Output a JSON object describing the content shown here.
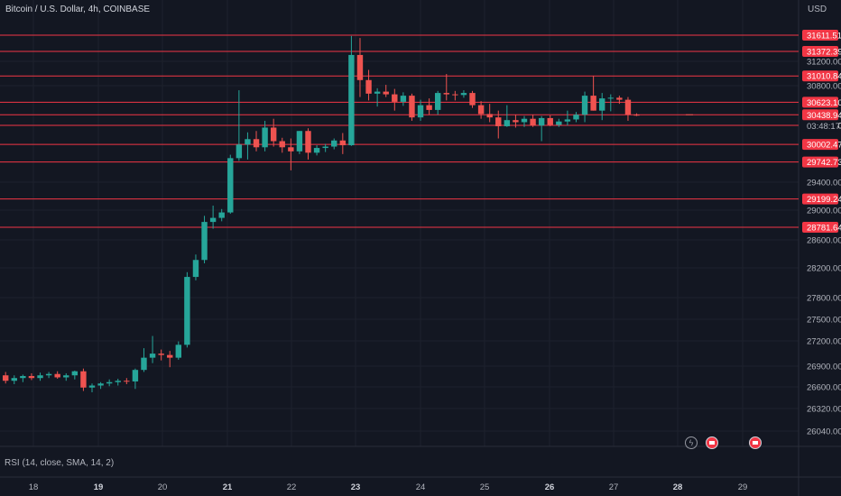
{
  "chart_data": {
    "type": "candlestick",
    "title": "Bitcoin / U.S. Dollar, 4h, COINBASE",
    "currency": "USD",
    "colors": {
      "up": "#26a69a",
      "down": "#ef5350",
      "level_line": "#f23645",
      "background": "#131722",
      "grid": "#1e222d",
      "text": "#b2b5be"
    },
    "x_axis": {
      "labels": [
        "18",
        "19",
        "20",
        "21",
        "22",
        "23",
        "24",
        "25",
        "26",
        "27",
        "28",
        "29"
      ],
      "bold": [
        "19",
        "21",
        "23",
        "26",
        "28"
      ]
    },
    "y_axis": {
      "labels": [
        "31200.00",
        "30800.00",
        "29400.00",
        "29000.00",
        "28600.00",
        "28200.00",
        "27800.00",
        "27500.00",
        "27200.00",
        "26900.00",
        "26600.00",
        "26320.00",
        "26040.00"
      ]
    },
    "price_levels": [
      "31611.51",
      "31372.39",
      "31010.84",
      "30623.10",
      "30438.94",
      "30282.40",
      "30002.47",
      "29742.73",
      "29199.24",
      "28781.64"
    ],
    "current_price": {
      "value": "30438.94",
      "countdown": "03:48:17"
    },
    "candles": [
      {
        "o": 26600,
        "h": 26650,
        "l": 26480,
        "c": 26520
      },
      {
        "o": 26520,
        "h": 26600,
        "l": 26470,
        "c": 26560
      },
      {
        "o": 26560,
        "h": 26610,
        "l": 26500,
        "c": 26590
      },
      {
        "o": 26590,
        "h": 26630,
        "l": 26530,
        "c": 26560
      },
      {
        "o": 26560,
        "h": 26640,
        "l": 26520,
        "c": 26600
      },
      {
        "o": 26600,
        "h": 26650,
        "l": 26560,
        "c": 26620
      },
      {
        "o": 26620,
        "h": 26660,
        "l": 26550,
        "c": 26570
      },
      {
        "o": 26570,
        "h": 26630,
        "l": 26520,
        "c": 26600
      },
      {
        "o": 26600,
        "h": 26670,
        "l": 26540,
        "c": 26660
      },
      {
        "o": 26660,
        "h": 26700,
        "l": 26370,
        "c": 26420
      },
      {
        "o": 26420,
        "h": 26480,
        "l": 26350,
        "c": 26450
      },
      {
        "o": 26450,
        "h": 26500,
        "l": 26400,
        "c": 26480
      },
      {
        "o": 26480,
        "h": 26540,
        "l": 26440,
        "c": 26500
      },
      {
        "o": 26500,
        "h": 26550,
        "l": 26450,
        "c": 26520
      },
      {
        "o": 26520,
        "h": 26560,
        "l": 26470,
        "c": 26510
      },
      {
        "o": 26510,
        "h": 26700,
        "l": 26400,
        "c": 26680
      },
      {
        "o": 26680,
        "h": 27000,
        "l": 26650,
        "c": 26860
      },
      {
        "o": 26860,
        "h": 27180,
        "l": 26780,
        "c": 26920
      },
      {
        "o": 26920,
        "h": 26980,
        "l": 26820,
        "c": 26900
      },
      {
        "o": 26900,
        "h": 26960,
        "l": 26720,
        "c": 26860
      },
      {
        "o": 26860,
        "h": 27100,
        "l": 26830,
        "c": 27050
      },
      {
        "o": 27050,
        "h": 28120,
        "l": 27010,
        "c": 28050
      },
      {
        "o": 28050,
        "h": 28380,
        "l": 28000,
        "c": 28300
      },
      {
        "o": 28300,
        "h": 28950,
        "l": 28250,
        "c": 28860
      },
      {
        "o": 28860,
        "h": 29100,
        "l": 28760,
        "c": 28920
      },
      {
        "o": 28920,
        "h": 29050,
        "l": 28870,
        "c": 29000
      },
      {
        "o": 29000,
        "h": 29850,
        "l": 28980,
        "c": 29800
      },
      {
        "o": 29800,
        "h": 30800,
        "l": 29760,
        "c": 30000
      },
      {
        "o": 30000,
        "h": 30180,
        "l": 29780,
        "c": 30080
      },
      {
        "o": 30080,
        "h": 30200,
        "l": 29900,
        "c": 29960
      },
      {
        "o": 29960,
        "h": 30350,
        "l": 29900,
        "c": 30250
      },
      {
        "o": 30250,
        "h": 30380,
        "l": 29970,
        "c": 30050
      },
      {
        "o": 30050,
        "h": 30100,
        "l": 29880,
        "c": 29960
      },
      {
        "o": 29960,
        "h": 30090,
        "l": 29620,
        "c": 29900
      },
      {
        "o": 29900,
        "h": 30200,
        "l": 29860,
        "c": 30200
      },
      {
        "o": 30200,
        "h": 30240,
        "l": 29780,
        "c": 29880
      },
      {
        "o": 29880,
        "h": 29990,
        "l": 29840,
        "c": 29950
      },
      {
        "o": 29950,
        "h": 30010,
        "l": 29890,
        "c": 29970
      },
      {
        "o": 29970,
        "h": 30090,
        "l": 29930,
        "c": 30060
      },
      {
        "o": 30060,
        "h": 30170,
        "l": 29860,
        "c": 29990
      },
      {
        "o": 29990,
        "h": 31600,
        "l": 29980,
        "c": 31320
      },
      {
        "o": 31320,
        "h": 31570,
        "l": 30700,
        "c": 30950
      },
      {
        "o": 30950,
        "h": 31100,
        "l": 30650,
        "c": 30750
      },
      {
        "o": 30750,
        "h": 30830,
        "l": 30560,
        "c": 30780
      },
      {
        "o": 30780,
        "h": 30880,
        "l": 30700,
        "c": 30740
      },
      {
        "o": 30740,
        "h": 30820,
        "l": 30500,
        "c": 30630
      },
      {
        "o": 30630,
        "h": 30770,
        "l": 30570,
        "c": 30720
      },
      {
        "o": 30720,
        "h": 30750,
        "l": 30350,
        "c": 30400
      },
      {
        "o": 30400,
        "h": 30660,
        "l": 30350,
        "c": 30580
      },
      {
        "o": 30580,
        "h": 30680,
        "l": 30440,
        "c": 30510
      },
      {
        "o": 30510,
        "h": 30790,
        "l": 30440,
        "c": 30760
      },
      {
        "o": 30760,
        "h": 31040,
        "l": 30650,
        "c": 30740
      },
      {
        "o": 30740,
        "h": 30790,
        "l": 30650,
        "c": 30730
      },
      {
        "o": 30730,
        "h": 30800,
        "l": 30690,
        "c": 30760
      },
      {
        "o": 30760,
        "h": 30790,
        "l": 30540,
        "c": 30580
      },
      {
        "o": 30580,
        "h": 30640,
        "l": 30380,
        "c": 30450
      },
      {
        "o": 30450,
        "h": 30600,
        "l": 30330,
        "c": 30400
      },
      {
        "o": 30400,
        "h": 30500,
        "l": 30090,
        "c": 30270
      },
      {
        "o": 30270,
        "h": 30580,
        "l": 30260,
        "c": 30360
      },
      {
        "o": 30360,
        "h": 30440,
        "l": 30250,
        "c": 30330
      },
      {
        "o": 30330,
        "h": 30420,
        "l": 30260,
        "c": 30380
      },
      {
        "o": 30380,
        "h": 30440,
        "l": 30260,
        "c": 30280
      },
      {
        "o": 30280,
        "h": 30420,
        "l": 30050,
        "c": 30390
      },
      {
        "o": 30390,
        "h": 30430,
        "l": 30270,
        "c": 30290
      },
      {
        "o": 30290,
        "h": 30380,
        "l": 30260,
        "c": 30340
      },
      {
        "o": 30340,
        "h": 30500,
        "l": 30280,
        "c": 30370
      },
      {
        "o": 30370,
        "h": 30480,
        "l": 30330,
        "c": 30440
      },
      {
        "o": 30440,
        "h": 30780,
        "l": 30330,
        "c": 30720
      },
      {
        "o": 30720,
        "h": 31010,
        "l": 30500,
        "c": 30500
      },
      {
        "o": 30500,
        "h": 30760,
        "l": 30360,
        "c": 30680
      },
      {
        "o": 30680,
        "h": 30740,
        "l": 30490,
        "c": 30690
      },
      {
        "o": 30690,
        "h": 30720,
        "l": 30600,
        "c": 30660
      },
      {
        "o": 30660,
        "h": 30700,
        "l": 30350,
        "c": 30440
      },
      {
        "o": 30440,
        "h": 30460,
        "l": 30420,
        "c": 30438.94
      }
    ]
  },
  "rsi": {
    "label": "RSI (14, close, SMA, 14, 2)"
  }
}
